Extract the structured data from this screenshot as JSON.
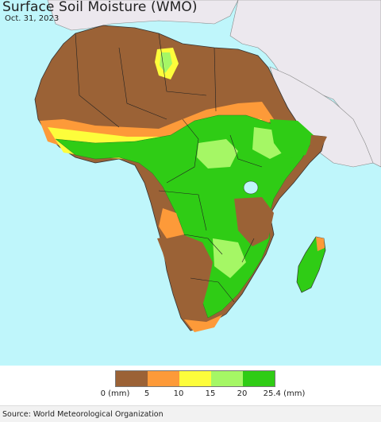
{
  "header": {
    "title": "Surface Soil Moisture (WMO)",
    "date": "Oct. 31, 2023"
  },
  "legend": {
    "colors": [
      "#9b6236",
      "#fd9a39",
      "#fdfd3b",
      "#a5f765",
      "#2fcc15"
    ],
    "labels": [
      "0 (mm)",
      "5",
      "10",
      "15",
      "20",
      "25.4 (mm)"
    ]
  },
  "footer": {
    "source": "Source: World Meteorological Organization"
  },
  "palette": {
    "ocean": "#bff6fb",
    "no_data_land": "#ece8ee",
    "dry": "#9b6236",
    "wet": "#2fcc15"
  }
}
